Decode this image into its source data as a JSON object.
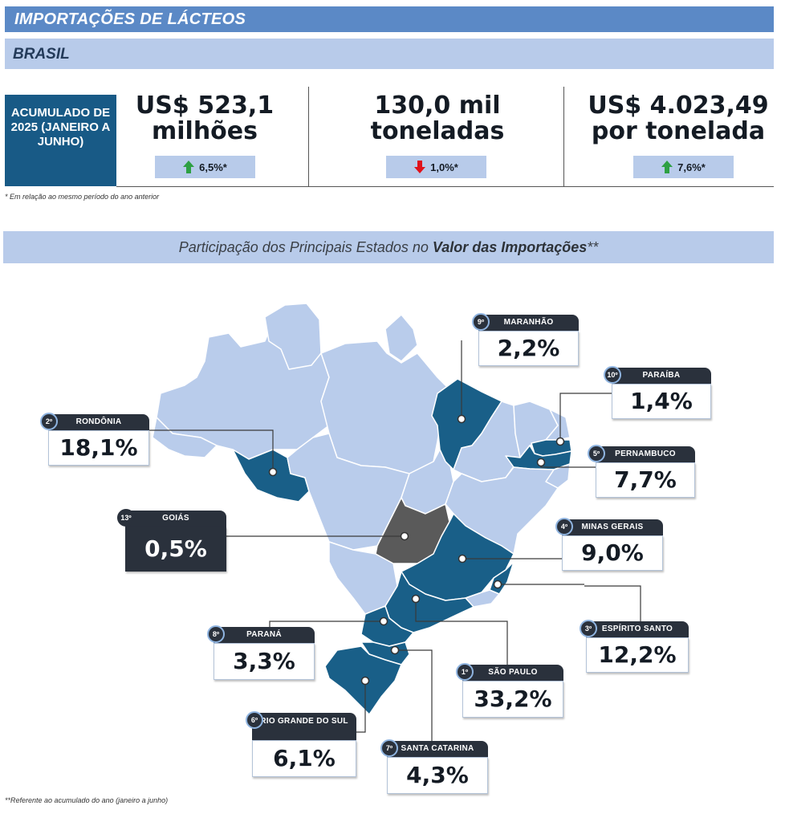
{
  "header": {
    "title": "IMPORTAÇÕES DE LÁCTEOS",
    "country": "BRASIL"
  },
  "summary": {
    "period_label": "ACUMULADO DE 2025 (JANEIRO A JUNHO)",
    "kpis": [
      {
        "line1": "US$ 523,1",
        "line2": "milhões",
        "change": "6,5%*",
        "direction": "up"
      },
      {
        "line1": "130,0 mil",
        "line2": "toneladas",
        "change": "1,0%*",
        "direction": "down"
      },
      {
        "line1": "US$ 4.023,49",
        "line2": "por tonelada",
        "change": "7,6%*",
        "direction": "up"
      }
    ],
    "footnote": "* Em relação ao mesmo período do ano anterior"
  },
  "map_section": {
    "title_plain": "Participação dos Principais Estados no ",
    "title_bold": "Valor das Importações",
    "title_suffix": "**",
    "footnote": "**Referente ao acumulado do ano (janeiro a junho)"
  },
  "states": [
    {
      "rank": "1º",
      "name": "SÃO PAULO",
      "share": "33,2%"
    },
    {
      "rank": "2º",
      "name": "RONDÔNIA",
      "share": "18,1%"
    },
    {
      "rank": "3º",
      "name": "ESPÍRITO SANTO",
      "share": "12,2%"
    },
    {
      "rank": "4º",
      "name": "MINAS GERAIS",
      "share": "9,0%"
    },
    {
      "rank": "5º",
      "name": "PERNAMBUCO",
      "share": "7,7%"
    },
    {
      "rank": "6º",
      "name": "RIO GRANDE DO SUL",
      "share": "6,1%"
    },
    {
      "rank": "7º",
      "name": "SANTA CATARINA",
      "share": "4,3%"
    },
    {
      "rank": "8º",
      "name": "PARANÁ",
      "share": "3,3%"
    },
    {
      "rank": "9º",
      "name": "MARANHÃO",
      "share": "2,2%"
    },
    {
      "rank": "10º",
      "name": "PARAÍBA",
      "share": "1,4%"
    },
    {
      "rank": "13º",
      "name": "GOIÁS",
      "share": "0,5%"
    }
  ],
  "colors": {
    "highlight_state": "#195f88",
    "other_state": "#b9cceb",
    "goias_state": "#5a5a5a",
    "up_arrow": "#2ea043",
    "down_arrow": "#e0121b"
  }
}
